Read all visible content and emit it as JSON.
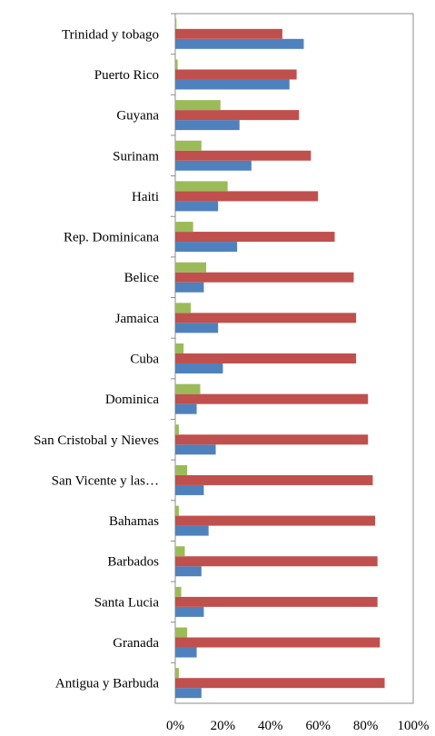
{
  "chart_data": {
    "type": "bar",
    "orientation": "horizontal",
    "categories": [
      "Trinidad y tobago",
      "Puerto Rico",
      "Guyana",
      "Surinam",
      "Haiti",
      "Rep. Dominicana",
      "Belice",
      "Jamaica",
      "Cuba",
      "Dominica",
      "San Cristobal y Nieves",
      "San Vicente y las…",
      "Bahamas",
      "Barbados",
      "Santa Lucia",
      "Granada",
      "Antigua y Barbuda"
    ],
    "series": [
      {
        "color": "#4f81bd",
        "values": [
          54,
          48,
          27,
          32,
          18,
          26,
          12,
          18,
          20,
          9,
          17,
          12,
          14,
          11,
          12,
          9,
          11
        ]
      },
      {
        "color": "#c0504d",
        "values": [
          45,
          51,
          52,
          57,
          60,
          67,
          75,
          76,
          76,
          81,
          81,
          83,
          84,
          85,
          85,
          86,
          88
        ]
      },
      {
        "color": "#9bbb59",
        "values": [
          0.5,
          1,
          19,
          11,
          22,
          7.5,
          13,
          6.5,
          3.5,
          10.5,
          1.5,
          5,
          1.5,
          4,
          2.5,
          5,
          1.5
        ]
      }
    ],
    "x_ticks": [
      "0%",
      "20%",
      "40%",
      "60%",
      "80%",
      "100%"
    ],
    "xlim": [
      0,
      100
    ],
    "grid": false,
    "legend": "none",
    "title": "",
    "xlabel": "",
    "ylabel": ""
  }
}
